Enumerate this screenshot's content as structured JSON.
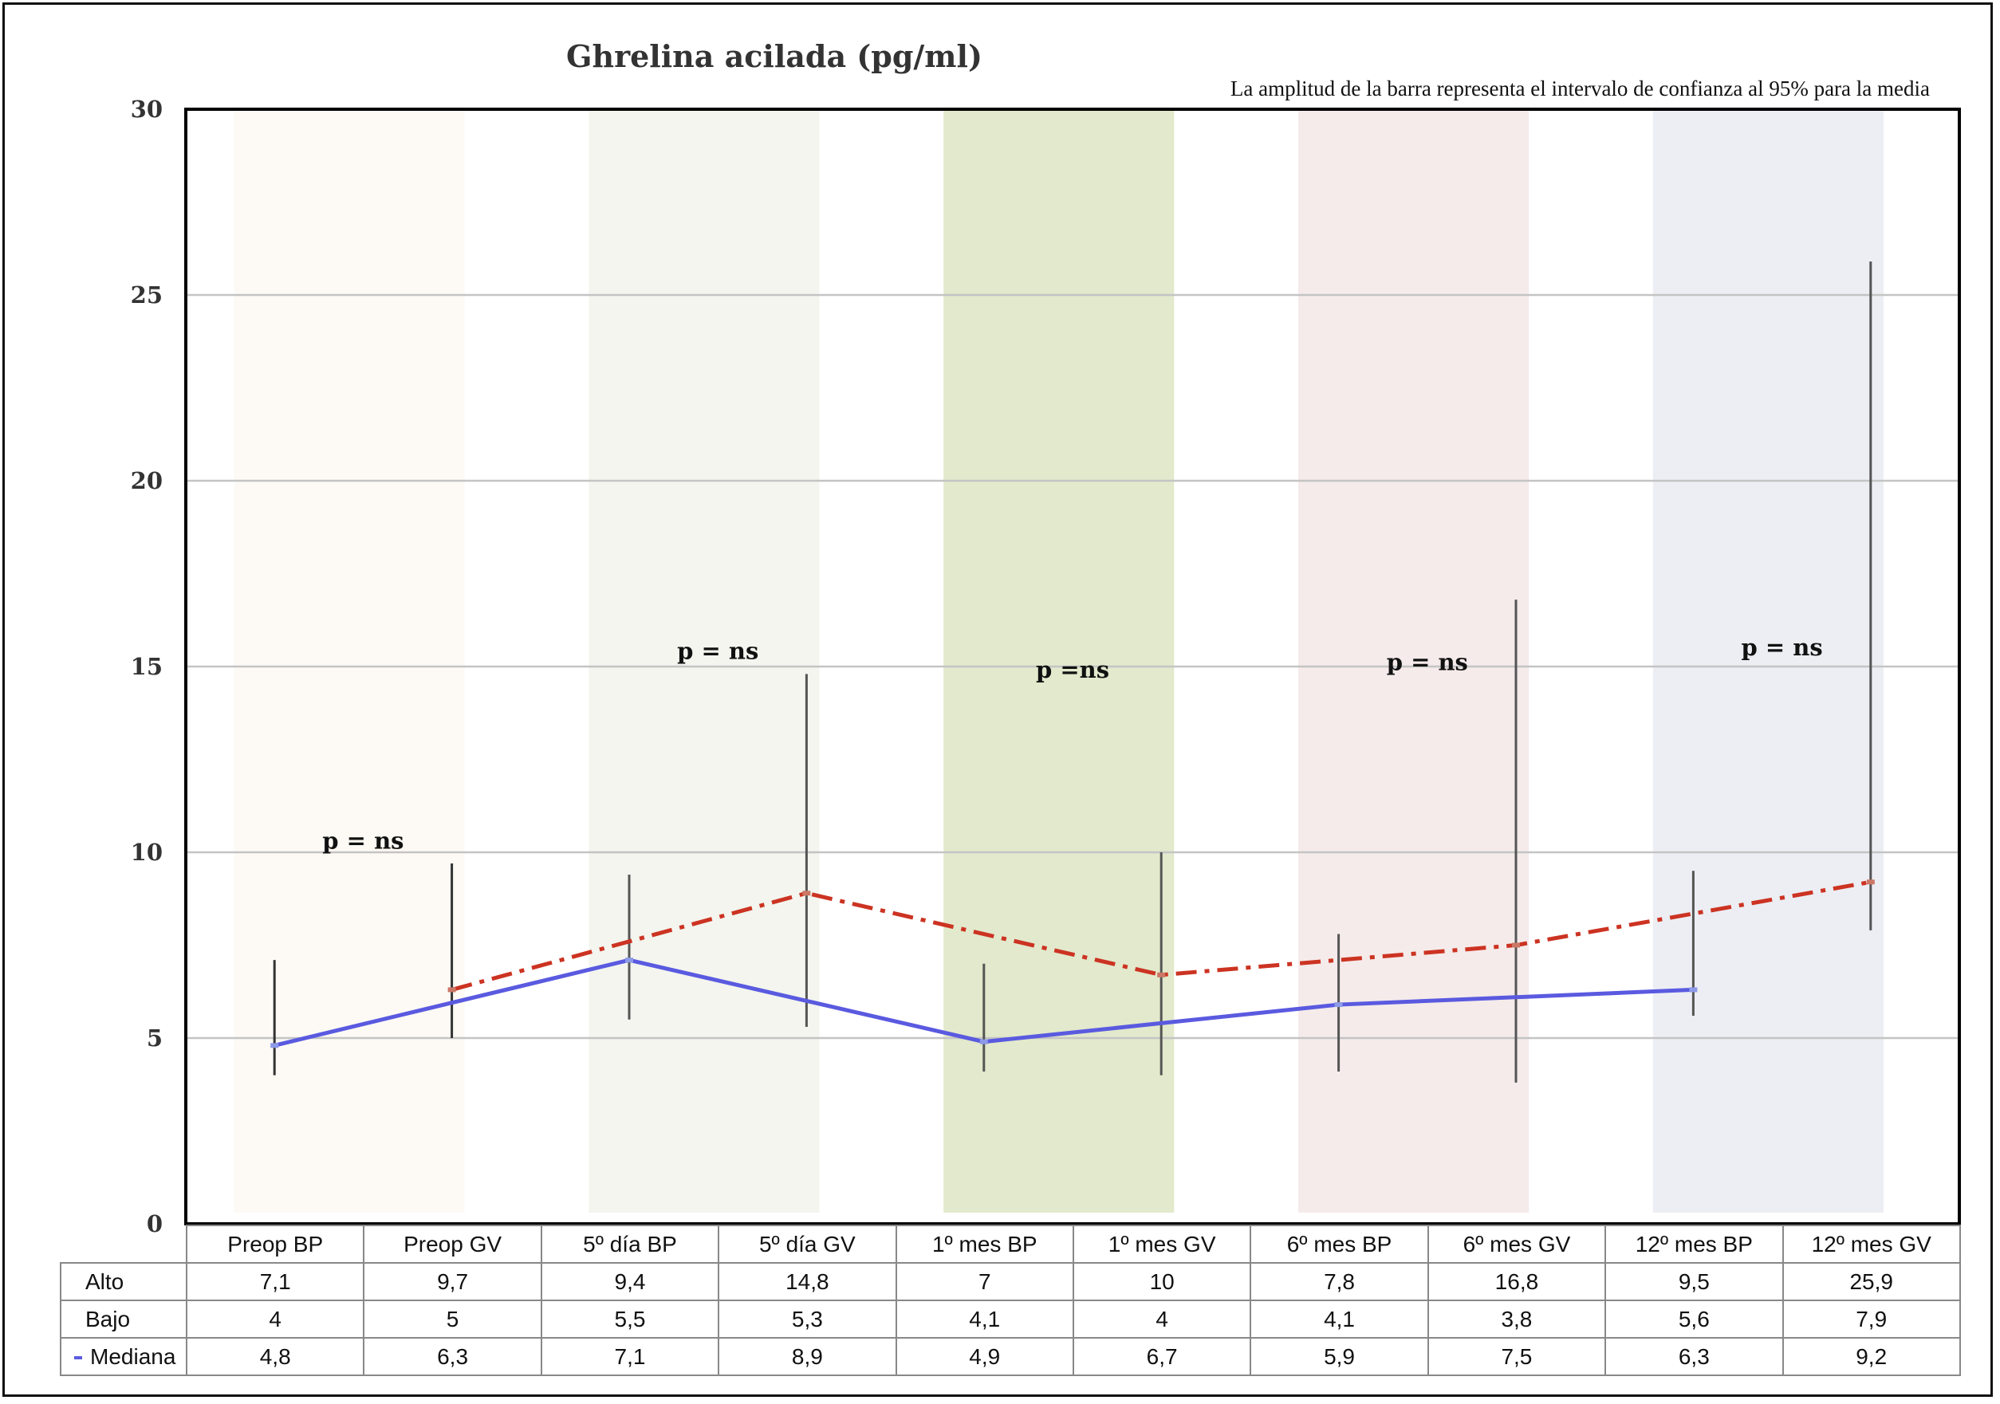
{
  "chart_data": {
    "type": "line",
    "title": "Ghrelina acilada (pg/ml)",
    "note": "La amplitud de la barra representa el intervalo de confianza al 95% para la media",
    "categories": [
      "Preop BP",
      "Preop GV",
      "5º día BP",
      "5º día GV",
      "1º mes BP",
      "1º mes GV",
      "6º mes BP",
      "6º mes GV",
      "12º mes BP",
      "12º mes GV"
    ],
    "ylim": [
      0,
      30
    ],
    "yticks": [
      0,
      5,
      10,
      15,
      20,
      25,
      30
    ],
    "grid": true,
    "series": [
      {
        "name": "Alto",
        "values": [
          7.1,
          9.7,
          9.4,
          14.8,
          7,
          10,
          7.8,
          16.8,
          9.5,
          25.9
        ]
      },
      {
        "name": "Bajo",
        "values": [
          4,
          5,
          5.5,
          5.3,
          4.1,
          4,
          4.1,
          3.8,
          5.6,
          7.9
        ]
      },
      {
        "name": "Mediana",
        "values": [
          4.8,
          6.3,
          7.1,
          8.9,
          4.9,
          6.7,
          5.9,
          7.5,
          6.3,
          9.2
        ]
      }
    ],
    "table_display": {
      "Alto": [
        "7,1",
        "9,7",
        "9,4",
        "14,8",
        "7",
        "10",
        "7,8",
        "16,8",
        "9,5",
        "25,9"
      ],
      "Bajo": [
        "4",
        "5",
        "5,5",
        "5,3",
        "4,1",
        "4",
        "4,1",
        "3,8",
        "5,6",
        "7,9"
      ],
      "Mediana": [
        "4,8",
        "6,3",
        "7,1",
        "8,9",
        "4,9",
        "6,7",
        "5,9",
        "7,5",
        "6,3",
        "9,2"
      ]
    },
    "annotations": [
      "p = ns",
      "p = ns",
      "p =ns",
      "p = ns",
      "p = ns"
    ],
    "band_colors": [
      "#fdfaf5",
      "#f3f5ee",
      "#e2e9cc",
      "#f5ebea",
      "#eceef3"
    ],
    "line_colors": {
      "bp": "#5a5ae0",
      "gv": "#cc3322",
      "error_bar": "#555555"
    }
  }
}
